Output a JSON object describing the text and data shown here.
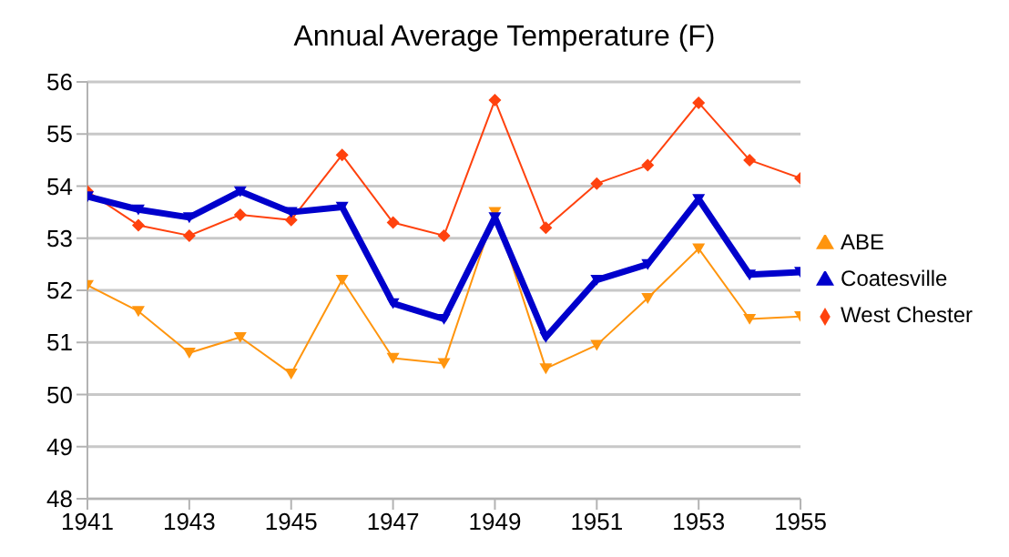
{
  "chart_data": {
    "type": "line",
    "title": "Annual Average Temperature (F)",
    "x": [
      1941,
      1942,
      1943,
      1944,
      1945,
      1946,
      1947,
      1948,
      1949,
      1950,
      1951,
      1952,
      1953,
      1954,
      1955
    ],
    "series": [
      {
        "name": "West Chester",
        "color": "#ff420e",
        "marker": "diamond",
        "values": [
          53.9,
          53.25,
          53.05,
          53.45,
          53.35,
          54.6,
          53.3,
          53.05,
          55.65,
          53.2,
          54.05,
          54.4,
          55.6,
          54.5,
          54.15
        ]
      },
      {
        "name": "ABE",
        "color": "#ff950e",
        "marker": "triangle",
        "values": [
          52.1,
          51.6,
          50.8,
          51.1,
          50.4,
          52.2,
          50.7,
          50.6,
          53.5,
          50.5,
          50.95,
          51.85,
          52.8,
          51.45,
          51.5
        ]
      },
      {
        "name": "Coatesville",
        "color": "#0000cc",
        "marker": "triangle",
        "values": [
          53.8,
          53.55,
          53.4,
          53.9,
          53.5,
          53.6,
          51.75,
          51.45,
          53.4,
          51.1,
          52.2,
          52.5,
          53.75,
          52.3,
          52.35
        ]
      }
    ],
    "xlim": [
      1941,
      1955
    ],
    "xticks": [
      1941,
      1943,
      1945,
      1947,
      1949,
      1951,
      1953,
      1955
    ],
    "ylim": [
      48,
      56
    ],
    "yticks": [
      48,
      49,
      50,
      51,
      52,
      53,
      54,
      55,
      56
    ],
    "grid": "y",
    "legend": "right"
  }
}
